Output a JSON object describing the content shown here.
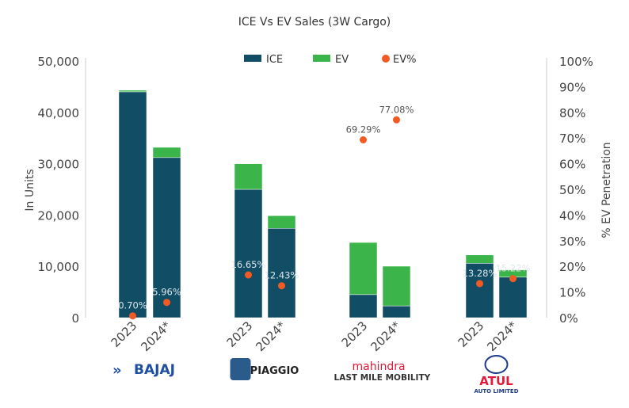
{
  "chart_data": {
    "type": "bar",
    "stacked": true,
    "title": "ICE Vs EV Sales (3W Cargo)",
    "ylabel": "In Units",
    "y2label": "% EV Penetration",
    "ylim": [
      0,
      50000
    ],
    "y2lim": [
      0,
      100
    ],
    "yticks": [
      "0",
      "10,000",
      "20,000",
      "30,000",
      "40,000",
      "50,000"
    ],
    "y2ticks": [
      "0%",
      "10%",
      "20%",
      "30%",
      "40%",
      "50%",
      "60%",
      "70%",
      "80%",
      "90%",
      "100%"
    ],
    "legend_position": "top",
    "grid": false,
    "groups": [
      {
        "brand": "BAJAJ",
        "categories": [
          "2023",
          "2024*"
        ]
      },
      {
        "brand": "PIAGGIO",
        "categories": [
          "2023",
          "2024*"
        ]
      },
      {
        "brand": "mahindra",
        "brand_sub": "LAST MILE MOBILITY",
        "categories": [
          "2023",
          "2024*"
        ]
      },
      {
        "brand": "ATUL",
        "brand_sub": "AUTO LIMITED",
        "categories": [
          "2023",
          "2024*"
        ]
      }
    ],
    "series": [
      {
        "name": "ICE",
        "type": "bar",
        "color": "#114e66",
        "values": [
          44000,
          31200,
          25000,
          17400,
          4500,
          2300,
          10600,
          7900
        ]
      },
      {
        "name": "EV",
        "type": "bar",
        "color": "#3bb54a",
        "values": [
          310,
          1980,
          4990,
          2470,
          10150,
          7730,
          1620,
          1420
        ]
      },
      {
        "name": "EV%",
        "type": "scatter",
        "axis": "right",
        "color": "#f15a22",
        "values": [
          0.7,
          5.96,
          16.65,
          12.43,
          69.29,
          77.08,
          13.28,
          15.22
        ],
        "labels": [
          "0.70%",
          "5.96%",
          "16.65%",
          "12.43%",
          "69.29%",
          "77.08%",
          "13.28%",
          "15.22%"
        ]
      }
    ]
  }
}
